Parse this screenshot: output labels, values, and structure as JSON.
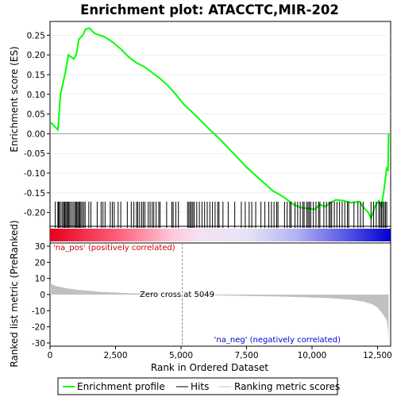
{
  "chart_data": [
    {
      "type": "line",
      "title": "Enrichment plot: ATACCTC,MIR-202",
      "ylabel": "Enrichment score (ES)",
      "xlim": [
        0,
        13000
      ],
      "ylim": [
        -0.235,
        0.285
      ],
      "yticks": [
        0.25,
        0.2,
        0.15,
        0.1,
        0.05,
        0.0,
        -0.05,
        -0.1,
        -0.15,
        -0.2
      ],
      "ytick_labels": [
        "0.25",
        "0.20",
        "0.15",
        "0.10",
        "0.05",
        "0.00",
        "-0.05",
        "-0.10",
        "-0.15",
        "-0.20"
      ],
      "series": [
        {
          "name": "Enrichment profile",
          "color": "#00ff00",
          "x": [
            0,
            300,
            400,
            500,
            600,
            700,
            900,
            1000,
            1100,
            1250,
            1350,
            1500,
            1700,
            1900,
            2100,
            2400,
            2700,
            3000,
            3300,
            3600,
            3900,
            4200,
            4500,
            4800,
            5100,
            5500,
            5800,
            6100,
            6500,
            7000,
            7500,
            8000,
            8500,
            8900,
            9300,
            9600,
            9900,
            10100,
            10300,
            10500,
            10700,
            10900,
            11200,
            11500,
            11800,
            12000,
            12150,
            12250,
            12400,
            12550,
            12650,
            12750,
            12850,
            12900,
            12920
          ],
          "y": [
            0.03,
            0.01,
            0.1,
            0.13,
            0.16,
            0.2,
            0.19,
            0.2,
            0.24,
            0.25,
            0.265,
            0.268,
            0.255,
            0.25,
            0.245,
            0.232,
            0.215,
            0.195,
            0.18,
            0.17,
            0.155,
            0.14,
            0.122,
            0.1,
            0.075,
            0.05,
            0.03,
            0.01,
            -0.015,
            -0.05,
            -0.085,
            -0.115,
            -0.145,
            -0.16,
            -0.18,
            -0.188,
            -0.19,
            -0.192,
            -0.18,
            -0.185,
            -0.175,
            -0.168,
            -0.17,
            -0.175,
            -0.172,
            -0.19,
            -0.2,
            -0.215,
            -0.185,
            -0.17,
            -0.185,
            -0.14,
            -0.085,
            -0.095,
            0.0
          ]
        }
      ]
    },
    {
      "type": "rug",
      "series": [
        {
          "name": "Hits",
          "color": "#000000",
          "x": [
            200,
            300,
            330,
            360,
            420,
            480,
            520,
            560,
            600,
            640,
            680,
            720,
            760,
            820,
            880,
            940,
            980,
            1020,
            1060,
            1100,
            1140,
            1180,
            1230,
            1290,
            1340,
            1480,
            1560,
            1800,
            1950,
            2020,
            2100,
            2300,
            2380,
            2450,
            2600,
            2700,
            2950,
            3100,
            3200,
            3300,
            3350,
            3420,
            3500,
            3560,
            3620,
            3750,
            3820,
            3900,
            3960,
            4050,
            4150,
            4200,
            4450,
            4650,
            4700,
            4800,
            4900,
            5250,
            5300,
            5350,
            5400,
            5450,
            5500,
            5600,
            5700,
            5800,
            5900,
            6000,
            6100,
            6200,
            6300,
            6400,
            6450,
            6600,
            6800,
            7050,
            7300,
            7450,
            7600,
            7700,
            7850,
            8050,
            8200,
            8350,
            8450,
            8550,
            8650,
            8700,
            8950,
            9050,
            9150,
            9200,
            9350,
            9450,
            9550,
            9650,
            9700,
            9800,
            9850,
            9900,
            9950,
            10050,
            10150,
            10250,
            10300,
            10450,
            10550,
            10650,
            10700,
            10750,
            10850,
            10950,
            11050,
            11150,
            11250,
            11350,
            11400,
            11600,
            11750,
            11850,
            11950,
            12250,
            12350,
            12450,
            12550,
            12600,
            12650,
            12700,
            12750,
            12800,
            12850
          ]
        }
      ]
    },
    {
      "type": "area",
      "xlabel": "Rank in Ordered Dataset",
      "ylabel": "Ranked list metric (PreRanked)",
      "xlim": [
        0,
        13000
      ],
      "ylim": [
        -32,
        32
      ],
      "xticks": [
        0,
        2500,
        5000,
        7500,
        10000,
        12500
      ],
      "xtick_labels": [
        "0",
        "2,500",
        "5,000",
        "7,500",
        "10,000",
        "12,500"
      ],
      "yticks": [
        30,
        20,
        10,
        0,
        -10,
        -20,
        -30
      ],
      "ytick_labels": [
        "30",
        "20",
        "10",
        "0",
        "-10",
        "-20",
        "-30"
      ],
      "zero_cross": 5049,
      "series": [
        {
          "name": "Ranking metric scores",
          "color": "#c0c0c0",
          "x": [
            0,
            100,
            300,
            600,
            1000,
            1500,
            2000,
            3000,
            4000,
            5049,
            6000,
            7000,
            8000,
            9000,
            10000,
            10500,
            11000,
            11500,
            12000,
            12300,
            12500,
            12700,
            12850,
            12900,
            12920
          ],
          "y": [
            8,
            6,
            5,
            4,
            3,
            2.3,
            1.6,
            0.9,
            0.4,
            0,
            -0.4,
            -0.7,
            -1,
            -1.3,
            -1.8,
            -2.1,
            -2.6,
            -3.2,
            -4.5,
            -6,
            -8,
            -12,
            -16,
            -22,
            -30
          ]
        }
      ]
    }
  ],
  "annotations": {
    "zero_cross_text": "Zero cross at 5049",
    "pos_label": "'na_pos' (positively correlated)",
    "neg_label": "'na_neg' (negatively correlated)"
  },
  "legend": {
    "placement": "bottom",
    "items": [
      "Enrichment profile",
      "Hits",
      "Ranking metric scores"
    ]
  },
  "colors": {
    "enrichment_line": "#00ff00",
    "pos_label": "#cc0000",
    "neg_label": "#0000cc",
    "metric_fill": "#c0c0c0",
    "gradient_red": "#ff0000",
    "gradient_blue": "#0000ff"
  }
}
